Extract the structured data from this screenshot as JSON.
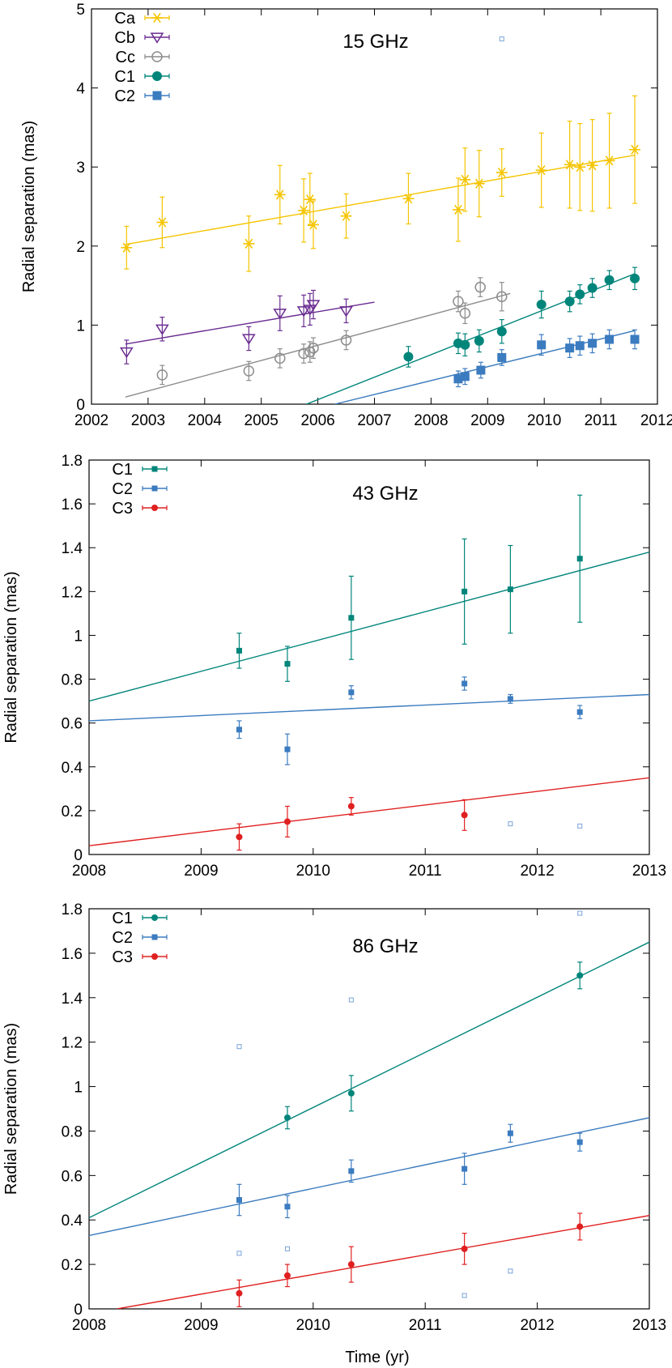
{
  "figure": {
    "xlabel": "Time (yr)",
    "hollow_marker_color": "#7aa3d8"
  },
  "chart_data": [
    {
      "type": "scatter",
      "annotation": "15 GHz",
      "ylabel": "Radial separation (mas)",
      "xlabel": "",
      "xlim": [
        2002,
        2012
      ],
      "ylim": [
        0,
        5
      ],
      "xticks": [
        2002,
        2003,
        2004,
        2005,
        2006,
        2007,
        2008,
        2009,
        2010,
        2011,
        2012
      ],
      "yticks": [
        0,
        1,
        2,
        3,
        4,
        5
      ],
      "legend_position": "top-left",
      "grid": false,
      "series": [
        {
          "name": "Ca",
          "color": "#f5c400",
          "marker": "asterisk",
          "fit": [
            [
              2002.6,
              2.02
            ],
            [
              2011.6,
              3.15
            ]
          ],
          "points": [
            [
              2002.62,
              1.98,
              0.27
            ],
            [
              2003.25,
              2.3,
              0.32
            ],
            [
              2004.78,
              2.03,
              0.35
            ],
            [
              2005.33,
              2.65,
              0.37
            ],
            [
              2005.75,
              2.45,
              0.4
            ],
            [
              2005.86,
              2.59,
              0.33
            ],
            [
              2005.92,
              2.27,
              0.3
            ],
            [
              2006.5,
              2.38,
              0.28
            ],
            [
              2007.6,
              2.6,
              0.32
            ],
            [
              2008.48,
              2.46,
              0.4
            ],
            [
              2008.6,
              2.84,
              0.4
            ],
            [
              2008.85,
              2.79,
              0.42
            ],
            [
              2009.25,
              2.93,
              0.3
            ],
            [
              2009.95,
              2.96,
              0.47
            ],
            [
              2010.45,
              3.03,
              0.55
            ],
            [
              2010.63,
              3.0,
              0.55
            ],
            [
              2010.85,
              3.02,
              0.58
            ],
            [
              2011.15,
              3.08,
              0.6
            ],
            [
              2011.6,
              3.22,
              0.68
            ]
          ]
        },
        {
          "name": "Cb",
          "color": "#6a2c91",
          "marker": "triangle-down-open",
          "fit": [
            [
              2002.6,
              0.76
            ],
            [
              2007.0,
              1.29
            ]
          ],
          "points": [
            [
              2002.62,
              0.66,
              0.15
            ],
            [
              2003.25,
              0.95,
              0.15
            ],
            [
              2004.78,
              0.83,
              0.15
            ],
            [
              2005.33,
              1.15,
              0.22
            ],
            [
              2005.75,
              1.18,
              0.2
            ],
            [
              2005.86,
              1.2,
              0.2
            ],
            [
              2005.92,
              1.26,
              0.18
            ],
            [
              2006.5,
              1.18,
              0.15
            ]
          ]
        },
        {
          "name": "Cc",
          "color": "#8c8c8c",
          "marker": "circle-open",
          "fit": [
            [
              2002.6,
              0.09
            ],
            [
              2009.4,
              1.4
            ]
          ],
          "points": [
            [
              2003.25,
              0.37,
              0.12
            ],
            [
              2004.78,
              0.42,
              0.12
            ],
            [
              2005.33,
              0.58,
              0.12
            ],
            [
              2005.75,
              0.64,
              0.12
            ],
            [
              2005.86,
              0.66,
              0.13
            ],
            [
              2005.92,
              0.71,
              0.13
            ],
            [
              2006.5,
              0.81,
              0.12
            ],
            [
              2008.48,
              1.3,
              0.13
            ],
            [
              2008.6,
              1.15,
              0.13
            ],
            [
              2008.87,
              1.48,
              0.12
            ],
            [
              2009.25,
              1.36,
              0.18
            ]
          ]
        },
        {
          "name": "C1",
          "color": "#00857a",
          "marker": "circle-filled",
          "fit": [
            [
              2005.8,
              0.0
            ],
            [
              2011.6,
              1.65
            ]
          ],
          "points": [
            [
              2007.6,
              0.6,
              0.13
            ],
            [
              2008.48,
              0.77,
              0.13
            ],
            [
              2008.6,
              0.75,
              0.14
            ],
            [
              2008.85,
              0.8,
              0.14
            ],
            [
              2009.25,
              0.92,
              0.15
            ],
            [
              2009.95,
              1.26,
              0.17
            ],
            [
              2010.45,
              1.3,
              0.13
            ],
            [
              2010.63,
              1.39,
              0.12
            ],
            [
              2010.85,
              1.47,
              0.12
            ],
            [
              2011.15,
              1.57,
              0.12
            ],
            [
              2011.6,
              1.59,
              0.14
            ]
          ]
        },
        {
          "name": "C2",
          "color": "#3b7bbf",
          "marker": "square-filled",
          "fit": [
            [
              2006.3,
              0.0
            ],
            [
              2011.6,
              0.93
            ]
          ],
          "points": [
            [
              2008.48,
              0.32,
              0.1
            ],
            [
              2008.6,
              0.35,
              0.1
            ],
            [
              2008.88,
              0.43,
              0.1
            ],
            [
              2009.25,
              0.59,
              0.1
            ],
            [
              2009.95,
              0.75,
              0.13
            ],
            [
              2010.45,
              0.71,
              0.12
            ],
            [
              2010.63,
              0.74,
              0.12
            ],
            [
              2010.85,
              0.77,
              0.12
            ],
            [
              2011.15,
              0.82,
              0.12
            ],
            [
              2011.6,
              0.82,
              0.12
            ]
          ]
        }
      ],
      "extra_points": [
        [
          2009.25,
          4.62
        ]
      ]
    },
    {
      "type": "scatter",
      "annotation": "43 GHz",
      "ylabel": "Radial separation (mas)",
      "xlabel": "",
      "xlim": [
        2008,
        2013
      ],
      "ylim": [
        0,
        1.8
      ],
      "xticks": [
        2008,
        2009,
        2010,
        2011,
        2012,
        2013
      ],
      "yticks": [
        0,
        0.2,
        0.4,
        0.6,
        0.8,
        1,
        1.2,
        1.4,
        1.6,
        1.8
      ],
      "legend_position": "top-left",
      "grid": false,
      "series": [
        {
          "name": "C1",
          "color": "#00857a",
          "marker": "square-filled-small",
          "fit": [
            [
              2008.0,
              0.7
            ],
            [
              2013.0,
              1.38
            ]
          ],
          "points": [
            [
              2009.34,
              0.93,
              0.08
            ],
            [
              2009.77,
              0.87,
              0.08
            ],
            [
              2010.34,
              1.08,
              0.19
            ],
            [
              2011.35,
              1.2,
              0.24
            ],
            [
              2011.76,
              1.21,
              0.2
            ],
            [
              2012.38,
              1.35,
              0.29
            ]
          ]
        },
        {
          "name": "C2",
          "color": "#3b7bbf",
          "marker": "square-filled-small",
          "fit": [
            [
              2008.0,
              0.61
            ],
            [
              2013.0,
              0.73
            ]
          ],
          "points": [
            [
              2009.34,
              0.57,
              0.04
            ],
            [
              2009.77,
              0.48,
              0.07
            ],
            [
              2010.34,
              0.74,
              0.03
            ],
            [
              2011.35,
              0.78,
              0.03
            ],
            [
              2011.76,
              0.71,
              0.02
            ],
            [
              2012.38,
              0.65,
              0.03
            ]
          ]
        },
        {
          "name": "C3",
          "color": "#e02020",
          "marker": "circle-filled-small",
          "fit": [
            [
              2008.0,
              0.04
            ],
            [
              2013.0,
              0.35
            ]
          ],
          "points": [
            [
              2009.34,
              0.08,
              0.06
            ],
            [
              2009.77,
              0.15,
              0.07
            ],
            [
              2010.34,
              0.22,
              0.04
            ],
            [
              2011.35,
              0.18,
              0.07
            ]
          ]
        }
      ],
      "extra_points": [
        [
          2011.76,
          0.14
        ],
        [
          2012.38,
          0.13
        ]
      ]
    },
    {
      "type": "scatter",
      "annotation": "86 GHz",
      "ylabel": "Radial separation (mas)",
      "xlabel": "Time (yr)",
      "xlim": [
        2008,
        2013
      ],
      "ylim": [
        0,
        1.8
      ],
      "xticks": [
        2008,
        2009,
        2010,
        2011,
        2012,
        2013
      ],
      "yticks": [
        0,
        0.2,
        0.4,
        0.6,
        0.8,
        1,
        1.2,
        1.4,
        1.6,
        1.8
      ],
      "legend_position": "top-left",
      "grid": false,
      "series": [
        {
          "name": "C1",
          "color": "#00857a",
          "marker": "circle-filled-small",
          "fit": [
            [
              2008.0,
              0.41
            ],
            [
              2013.0,
              1.65
            ]
          ],
          "points": [
            [
              2009.77,
              0.86,
              0.05
            ],
            [
              2010.34,
              0.97,
              0.08
            ],
            [
              2012.38,
              1.5,
              0.06
            ]
          ]
        },
        {
          "name": "C2",
          "color": "#3b7bbf",
          "marker": "square-filled-small",
          "fit": [
            [
              2008.0,
              0.33
            ],
            [
              2013.0,
              0.86
            ]
          ],
          "points": [
            [
              2009.34,
              0.49,
              0.07
            ],
            [
              2009.77,
              0.46,
              0.05
            ],
            [
              2010.34,
              0.62,
              0.05
            ],
            [
              2011.35,
              0.63,
              0.07
            ],
            [
              2011.76,
              0.79,
              0.04
            ],
            [
              2012.38,
              0.75,
              0.04
            ]
          ]
        },
        {
          "name": "C3",
          "color": "#e02020",
          "marker": "circle-filled-small",
          "fit": [
            [
              2008.25,
              0.0
            ],
            [
              2013.0,
              0.42
            ]
          ],
          "points": [
            [
              2009.34,
              0.07,
              0.06
            ],
            [
              2009.77,
              0.15,
              0.05
            ],
            [
              2010.34,
              0.2,
              0.08
            ],
            [
              2011.35,
              0.27,
              0.07
            ],
            [
              2012.38,
              0.37,
              0.06
            ]
          ]
        }
      ],
      "extra_points": [
        [
          2009.34,
          1.18
        ],
        [
          2010.34,
          1.39
        ],
        [
          2009.34,
          0.25
        ],
        [
          2009.77,
          0.27
        ],
        [
          2011.35,
          0.06
        ],
        [
          2011.76,
          0.17
        ],
        [
          2012.38,
          1.78
        ]
      ]
    }
  ]
}
